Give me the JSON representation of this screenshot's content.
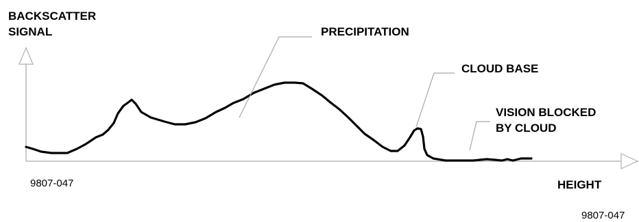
{
  "y_axis_label": [
    "BACKSCATTER",
    "SIGNAL"
  ],
  "x_axis_label": "HEIGHT",
  "annotations": {
    "precipitation": "PRECIPITATION",
    "cloud_base": "CLOUD BASE",
    "vision_blocked": [
      "VISION BLOCKED",
      "BY CLOUD"
    ]
  },
  "figure_code_left": "9807-047",
  "figure_code_right": "9807-047",
  "colors": {
    "curve": "#000000",
    "axes": "#b8b8b8",
    "leaders": "#a8a8a8"
  }
}
